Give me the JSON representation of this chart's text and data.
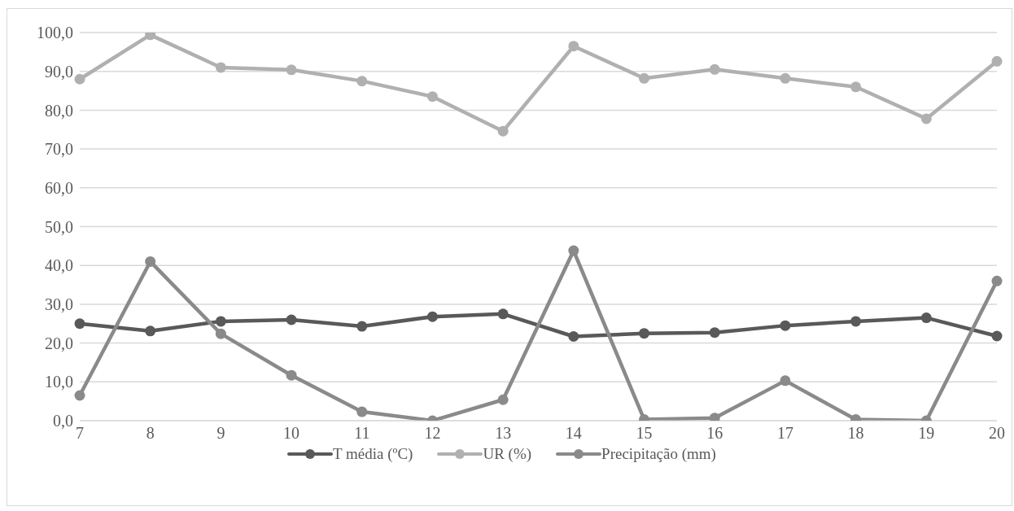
{
  "chart_data": {
    "type": "line",
    "categories": [
      "7",
      "8",
      "9",
      "10",
      "11",
      "12",
      "13",
      "14",
      "15",
      "16",
      "17",
      "18",
      "19",
      "20"
    ],
    "series": [
      {
        "name": "T média (ºC)",
        "color": "#595959",
        "values": [
          25.0,
          23.1,
          25.6,
          26.0,
          24.3,
          26.8,
          27.5,
          21.7,
          22.5,
          22.7,
          24.5,
          25.6,
          26.5,
          21.8
        ]
      },
      {
        "name": "UR (%)",
        "color": "#b0b0b0",
        "values": [
          88.0,
          99.4,
          91.0,
          90.4,
          87.5,
          83.5,
          74.6,
          96.5,
          88.2,
          90.5,
          88.2,
          86.0,
          77.8,
          92.6
        ]
      },
      {
        "name": "Precipitação (mm)",
        "color": "#8a8a8a",
        "values": [
          6.5,
          41.0,
          22.4,
          11.7,
          2.3,
          0.0,
          5.4,
          43.8,
          0.3,
          0.7,
          10.3,
          0.3,
          0.0,
          36.0
        ]
      }
    ],
    "ylim": [
      0,
      100
    ],
    "yticks": [
      {
        "value": 0,
        "label": "0,0"
      },
      {
        "value": 10,
        "label": "10,0"
      },
      {
        "value": 20,
        "label": "20,0"
      },
      {
        "value": 30,
        "label": "30,0"
      },
      {
        "value": 40,
        "label": "40,0"
      },
      {
        "value": 50,
        "label": "50,0"
      },
      {
        "value": 60,
        "label": "60,0"
      },
      {
        "value": 70,
        "label": "70,0"
      },
      {
        "value": 80,
        "label": "80,0"
      },
      {
        "value": 90,
        "label": "90,0"
      },
      {
        "value": 100,
        "label": "100,0"
      }
    ],
    "grid": "y",
    "legend": "bottom",
    "marker": "circle",
    "line_style": "solid"
  }
}
